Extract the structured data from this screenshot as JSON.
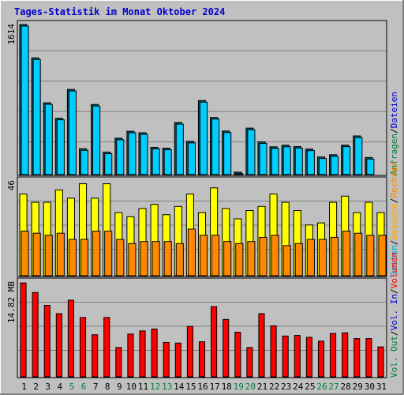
{
  "title": "Tages-Statistik im Monat Oktober 2024",
  "colors": {
    "background": "#c0c0c0",
    "frame": "#d8d8d8",
    "title": "#0000cc",
    "grid": "#808080",
    "hits": "#00ccff",
    "files": "#00ccff",
    "sites": "#ffff00",
    "visits": "#ff8800",
    "kbytes": "#ff0000",
    "weekend_day": "#008040",
    "weekday": "#000000"
  },
  "chart_data": [
    {
      "type": "bar",
      "panel": "top",
      "ymax_label": "1614",
      "ylim": [
        0,
        1614
      ],
      "series": [
        {
          "name": "Anfragen",
          "color": "#008040",
          "values": [
            1614,
            1255,
            772,
            606,
            916,
            278,
            754,
            242,
            392,
            466,
            450,
            293,
            284,
            560,
            358,
            796,
            614,
            469,
            27,
            500,
            352,
            299,
            316,
            301,
            275,
            190,
            214,
            317,
            416,
            184,
            0
          ]
        },
        {
          "name": "Dateien",
          "color": "#0000cc",
          "values": [
            1614,
            1255,
            772,
            606,
            916,
            278,
            754,
            242,
            392,
            466,
            450,
            293,
            284,
            560,
            358,
            796,
            614,
            469,
            27,
            500,
            352,
            299,
            316,
            301,
            275,
            190,
            214,
            317,
            416,
            184,
            0
          ]
        }
      ]
    },
    {
      "type": "bar",
      "panel": "middle",
      "ymax_label": "46",
      "ylim": [
        0,
        46
      ],
      "series": [
        {
          "name": "Seiten",
          "color": "#00aacc",
          "values": [
            0
          ]
        },
        {
          "name": "Besuche",
          "color": "#ffcc00",
          "values": [
            40,
            36,
            36,
            42,
            38,
            45,
            38,
            45,
            31,
            29,
            33,
            35,
            30,
            34,
            40,
            31,
            43,
            33,
            28,
            32,
            34,
            40,
            36,
            32,
            25,
            26,
            36,
            39,
            31,
            36,
            31
          ]
        },
        {
          "name": "Rechner",
          "color": "#ff8800",
          "values": [
            22,
            21,
            20,
            21,
            18,
            18,
            22,
            22,
            18,
            16,
            17,
            17,
            17,
            16,
            23,
            20,
            20,
            17,
            16,
            17,
            19,
            20,
            15,
            16,
            18,
            18,
            19,
            22,
            21,
            20,
            20
          ]
        }
      ]
    },
    {
      "type": "bar",
      "panel": "bottom",
      "ymax_label": "14.82 MB",
      "ylim": [
        0,
        14.82
      ],
      "series": [
        {
          "name": "Volumen",
          "color": "#ff0000",
          "values": [
            14.8,
            13.3,
            11.3,
            10.0,
            12.1,
            9.4,
            6.7,
            9.4,
            4.7,
            6.8,
            7.3,
            7.6,
            5.5,
            5.4,
            8.0,
            5.6,
            11.1,
            9.1,
            7.1,
            4.7,
            10.0,
            8.1,
            6.5,
            6.6,
            6.3,
            5.7,
            6.9,
            7.0,
            6.1,
            6.1,
            4.8
          ]
        }
      ]
    }
  ],
  "x_labels": [
    "1",
    "2",
    "3",
    "4",
    "5",
    "6",
    "7",
    "8",
    "9",
    "10",
    "11",
    "12",
    "13",
    "14",
    "15",
    "16",
    "17",
    "18",
    "19",
    "20",
    "21",
    "22",
    "23",
    "24",
    "25",
    "26",
    "27",
    "28",
    "29",
    "30",
    "31"
  ],
  "weekend_days": [
    5,
    6,
    12,
    13,
    19,
    20,
    26,
    27
  ],
  "side_labels": {
    "top": [
      {
        "text": "Anfragen",
        "color": "#008040"
      },
      {
        "text": "/",
        "color": "#000000"
      },
      {
        "text": "Dateien",
        "color": "#0000cc"
      }
    ],
    "middle": [
      {
        "text": "Seiten",
        "color": "#00aacc"
      },
      {
        "text": "/",
        "color": "#000000"
      },
      {
        "text": "Besuche",
        "color": "#ffaa00"
      },
      {
        "text": "/",
        "color": "#000000"
      },
      {
        "text": "Rechner",
        "color": "#ff8800"
      }
    ],
    "bottom": [
      {
        "text": "Vol. Out",
        "color": "#008040"
      },
      {
        "text": "/",
        "color": "#000000"
      },
      {
        "text": "Vol. In",
        "color": "#0000cc"
      },
      {
        "text": "/",
        "color": "#000000"
      },
      {
        "text": "Volumen",
        "color": "#ff0000"
      }
    ]
  }
}
